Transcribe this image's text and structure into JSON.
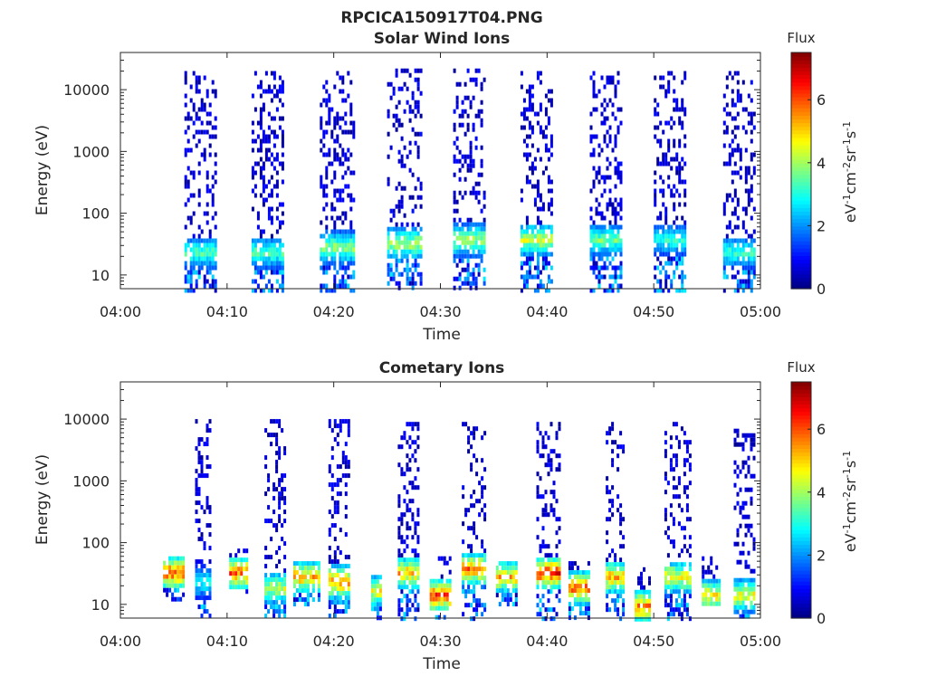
{
  "figure": {
    "title": "RPCICA150917T04.PNG"
  },
  "chart_data": [
    {
      "type": "heatmap",
      "title": "Solar Wind Ions",
      "xlabel": "Time",
      "ylabel": "Energy (eV)",
      "x_ticks": [
        "04:00",
        "04:10",
        "04:20",
        "04:30",
        "04:40",
        "04:50",
        "05:00"
      ],
      "x_range_minutes": [
        0,
        60
      ],
      "y_scale": "log",
      "y_ticks": [
        10,
        100,
        1000,
        10000
      ],
      "y_tick_labels": [
        "10",
        "100",
        "1000",
        "10000"
      ],
      "y_range": [
        6,
        40000
      ],
      "colorbar": {
        "title": "Flux",
        "label": "eV-1cm-2sr-1s-1",
        "range": [
          0,
          7.5
        ],
        "ticks": [
          0,
          2,
          4,
          6
        ]
      },
      "clusters": [
        {
          "start_min": 6.0,
          "end_min": 9.0,
          "emin": 6,
          "emax": 20000,
          "peak_e": 25,
          "peak_flux": 4.0
        },
        {
          "start_min": 12.3,
          "end_min": 15.3,
          "emin": 6,
          "emax": 20000,
          "peak_e": 25,
          "peak_flux": 4.0
        },
        {
          "start_min": 18.7,
          "end_min": 21.8,
          "emin": 6,
          "emax": 20000,
          "peak_e": 30,
          "peak_flux": 4.6
        },
        {
          "start_min": 25.0,
          "end_min": 28.2,
          "emin": 6,
          "emax": 22000,
          "peak_e": 35,
          "peak_flux": 4.8
        },
        {
          "start_min": 31.2,
          "end_min": 34.2,
          "emin": 6,
          "emax": 22000,
          "peak_e": 40,
          "peak_flux": 4.6
        },
        {
          "start_min": 37.5,
          "end_min": 40.5,
          "emin": 6,
          "emax": 20000,
          "peak_e": 40,
          "peak_flux": 5.0
        },
        {
          "start_min": 44.0,
          "end_min": 47.0,
          "emin": 6,
          "emax": 20000,
          "peak_e": 40,
          "peak_flux": 4.2
        },
        {
          "start_min": 50.0,
          "end_min": 53.0,
          "emin": 6,
          "emax": 20000,
          "peak_e": 40,
          "peak_flux": 3.6
        },
        {
          "start_min": 56.5,
          "end_min": 59.5,
          "emin": 6,
          "emax": 20000,
          "peak_e": 25,
          "peak_flux": 3.8
        }
      ]
    },
    {
      "type": "heatmap",
      "title": "Cometary Ions",
      "xlabel": "Time",
      "ylabel": "Energy (eV)",
      "x_ticks": [
        "04:00",
        "04:10",
        "04:20",
        "04:30",
        "04:40",
        "04:50",
        "05:00"
      ],
      "x_range_minutes": [
        0,
        60
      ],
      "y_scale": "log",
      "y_ticks": [
        10,
        100,
        1000,
        10000
      ],
      "y_tick_labels": [
        "10",
        "100",
        "1000",
        "10000"
      ],
      "y_range": [
        6,
        40000
      ],
      "colorbar": {
        "title": "Flux",
        "label": "eV-1cm-2sr-1s-1",
        "range": [
          0,
          7.5
        ],
        "ticks": [
          0,
          2,
          4,
          6
        ]
      },
      "clusters": [
        {
          "start_min": 4.0,
          "end_min": 6.0,
          "emin": 12,
          "emax": 60,
          "peak_e": 35,
          "peak_flux": 7.0
        },
        {
          "start_min": 7.0,
          "end_min": 8.3,
          "emin": 6,
          "emax": 10000,
          "peak_e": 25,
          "peak_flux": 3.5
        },
        {
          "start_min": 10.2,
          "end_min": 11.8,
          "emin": 15,
          "emax": 80,
          "peak_e": 35,
          "peak_flux": 6.8
        },
        {
          "start_min": 13.5,
          "end_min": 15.5,
          "emin": 6,
          "emax": 10000,
          "peak_e": 20,
          "peak_flux": 5.0
        },
        {
          "start_min": 16.2,
          "end_min": 18.5,
          "emin": 10,
          "emax": 50,
          "peak_e": 30,
          "peak_flux": 6.2
        },
        {
          "start_min": 19.5,
          "end_min": 21.5,
          "emin": 6,
          "emax": 10000,
          "peak_e": 25,
          "peak_flux": 6.5
        },
        {
          "start_min": 23.5,
          "end_min": 24.5,
          "emin": 6,
          "emax": 30,
          "peak_e": 18,
          "peak_flux": 5.5
        },
        {
          "start_min": 26.0,
          "end_min": 28.0,
          "emin": 6,
          "emax": 9000,
          "peak_e": 35,
          "peak_flux": 6.0
        },
        {
          "start_min": 29.0,
          "end_min": 31.0,
          "emin": 6,
          "emax": 60,
          "peak_e": 15,
          "peak_flux": 7.0
        },
        {
          "start_min": 32.0,
          "end_min": 34.2,
          "emin": 6,
          "emax": 9000,
          "peak_e": 40,
          "peak_flux": 6.5
        },
        {
          "start_min": 35.2,
          "end_min": 37.0,
          "emin": 10,
          "emax": 50,
          "peak_e": 30,
          "peak_flux": 6.0
        },
        {
          "start_min": 39.0,
          "end_min": 41.2,
          "emin": 6,
          "emax": 9000,
          "peak_e": 35,
          "peak_flux": 7.2
        },
        {
          "start_min": 42.0,
          "end_min": 44.0,
          "emin": 6,
          "emax": 50,
          "peak_e": 20,
          "peak_flux": 6.8
        },
        {
          "start_min": 45.5,
          "end_min": 47.2,
          "emin": 6,
          "emax": 9000,
          "peak_e": 30,
          "peak_flux": 6.2
        },
        {
          "start_min": 48.2,
          "end_min": 49.6,
          "emin": 6,
          "emax": 40,
          "peak_e": 10,
          "peak_flux": 6.5
        },
        {
          "start_min": 51.0,
          "end_min": 53.5,
          "emin": 6,
          "emax": 9000,
          "peak_e": 30,
          "peak_flux": 5.5
        },
        {
          "start_min": 54.5,
          "end_min": 56.2,
          "emin": 10,
          "emax": 60,
          "peak_e": 15,
          "peak_flux": 5.8
        },
        {
          "start_min": 57.5,
          "end_min": 59.5,
          "emin": 6,
          "emax": 7000,
          "peak_e": 15,
          "peak_flux": 5.5
        }
      ]
    }
  ]
}
